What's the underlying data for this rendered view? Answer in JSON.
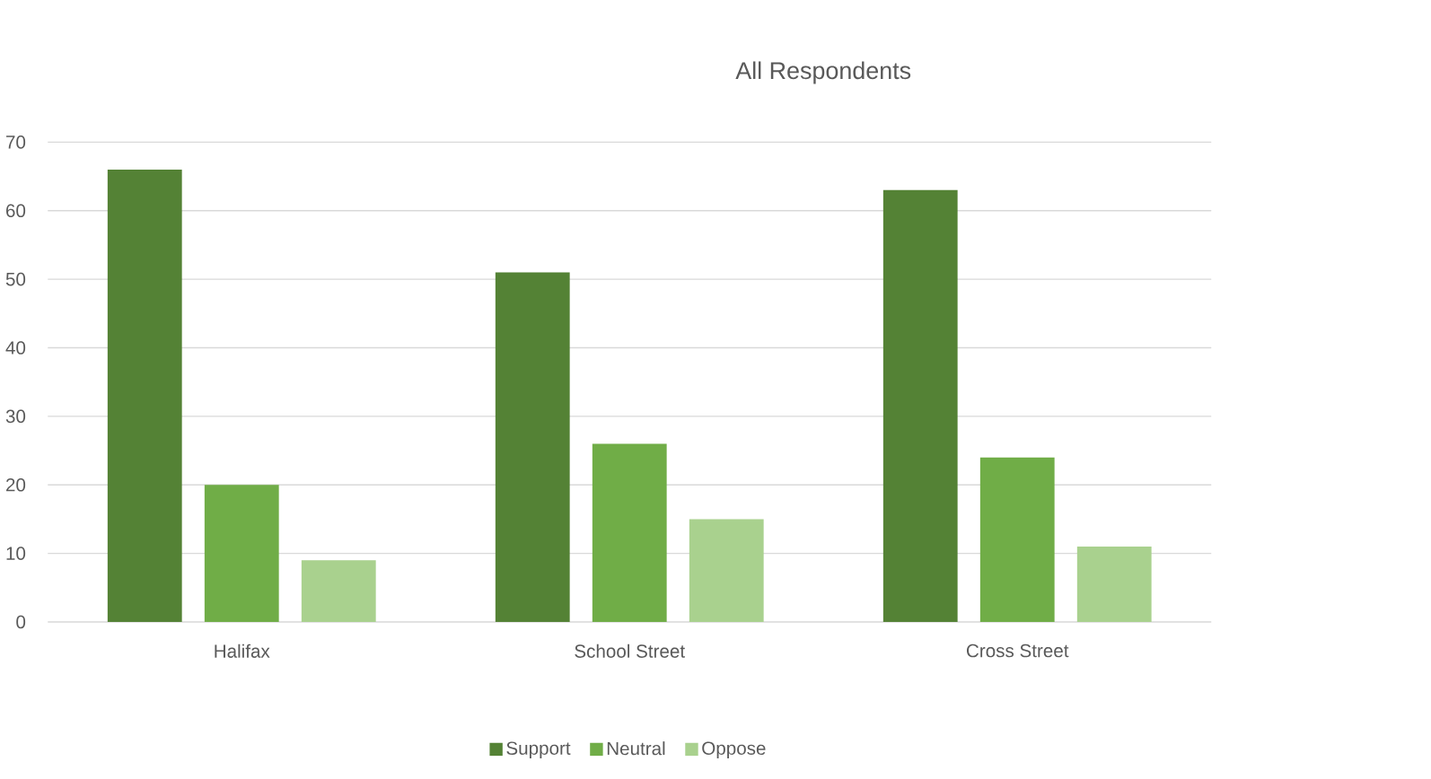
{
  "chart_data": {
    "type": "bar",
    "title": "All Respondents",
    "categories": [
      "Halifax",
      "School Street",
      "Cross Street"
    ],
    "series": [
      {
        "name": "Support",
        "color": "#548235",
        "values": [
          66,
          51,
          63
        ]
      },
      {
        "name": "Neutral",
        "color": "#70ad47",
        "values": [
          20,
          26,
          24
        ]
      },
      {
        "name": "Oppose",
        "color": "#a9d18e",
        "values": [
          9,
          15,
          11
        ]
      }
    ],
    "ylim": [
      0,
      70
    ],
    "yticks": [
      0,
      10,
      20,
      30,
      40,
      50,
      60,
      70
    ],
    "grid": "y",
    "legend": "bottom"
  }
}
